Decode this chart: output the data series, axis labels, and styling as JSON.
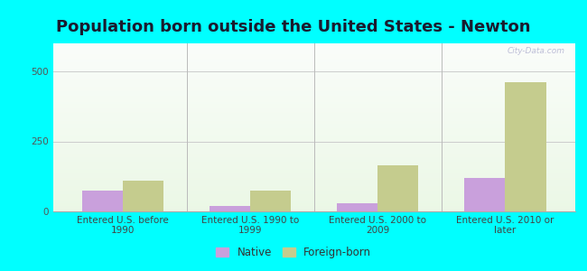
{
  "title": "Population born outside the United States - Newton",
  "categories": [
    "Entered U.S. before\n1990",
    "Entered U.S. 1990 to\n1999",
    "Entered U.S. 2000 to\n2009",
    "Entered U.S. 2010 or\nlater"
  ],
  "native_values": [
    75,
    20,
    30,
    120
  ],
  "foreign_values": [
    110,
    75,
    165,
    460
  ],
  "native_color": "#c9a0dc",
  "foreign_color": "#c5cc8e",
  "bar_width": 0.32,
  "ylim": [
    0,
    600
  ],
  "yticks": [
    0,
    250,
    500
  ],
  "outer_bg": "#00ffff",
  "title_fontsize": 13,
  "tick_fontsize": 7.5,
  "legend_fontsize": 8.5,
  "watermark": "City-Data.com"
}
